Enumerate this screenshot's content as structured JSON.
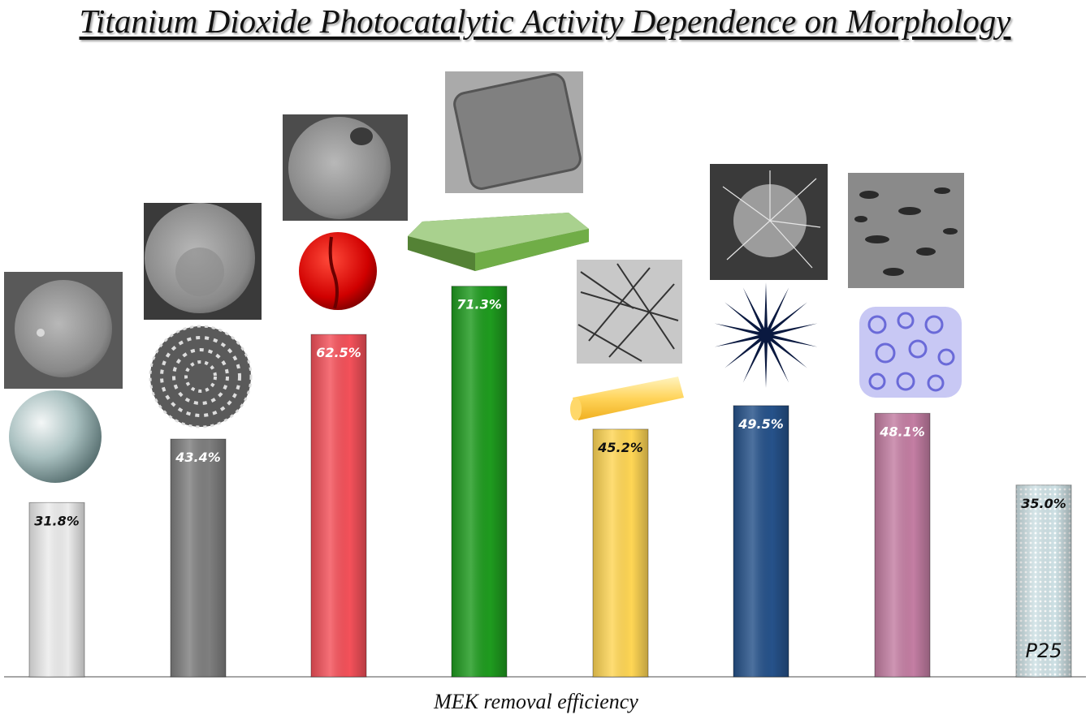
{
  "title": "Titanium Dioxide Photocatalytic Activity Dependence on Morphology",
  "xlabel": "MEK removal efficiency",
  "chart_data": {
    "type": "bar",
    "title": "Titanium Dioxide Photocatalytic Activity Dependence on Morphology",
    "xlabel": "MEK removal efficiency",
    "ylabel": "",
    "unit": "%",
    "values": [
      31.8,
      43.4,
      62.5,
      71.3,
      45.2,
      49.5,
      48.1,
      35.0
    ],
    "labels": [
      "31.8%",
      "43.4%",
      "62.5%",
      "71.3%",
      "45.2%",
      "49.5%",
      "48.1%",
      "35.0%"
    ],
    "bar_names": [
      "",
      "",
      "",
      "",
      "",
      "",
      "",
      "P25"
    ],
    "colors": [
      "#ececec",
      "#7f7f7f",
      "#f4515a",
      "#1f9b1f",
      "#ffd655",
      "#26528a",
      "#c47ea3",
      "#cfe2e6"
    ],
    "label_colors": [
      "#111111",
      "#ffffff",
      "#ffffff",
      "#ffffff",
      "#111111",
      "#ffffff",
      "#ffffff",
      "#111111"
    ],
    "morphology_icons": [
      "sphere-icon",
      "porous-sphere-icon",
      "hollow-sphere-icon",
      "nanosheet-icon",
      "nanorod-icon",
      "star-icon",
      "porous-network-icon",
      ""
    ],
    "ylim": [
      0,
      80
    ],
    "grid": false,
    "legend": "none"
  }
}
